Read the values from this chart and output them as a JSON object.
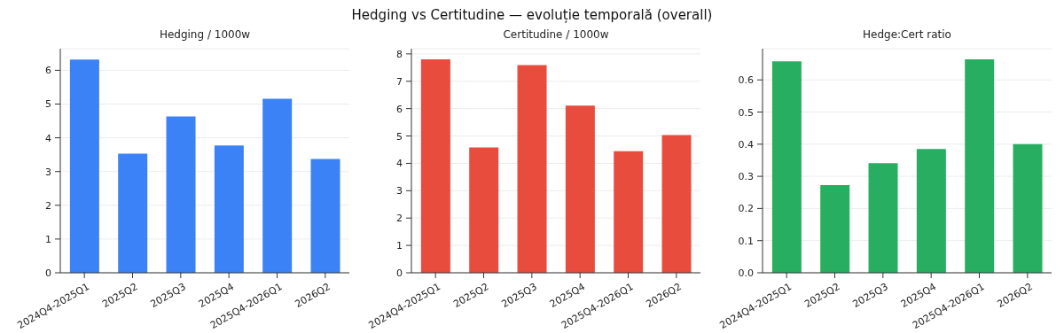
{
  "chart_data": [
    {
      "type": "bar",
      "title": "Hedging / 1000w",
      "annotations": [
        "Hedging vs Certitudine — evoluție temporală (overall)"
      ],
      "categories": [
        "2024Q4-2025Q1",
        "2025Q2",
        "2025Q3",
        "2025Q4",
        "2025Q4-2026Q1",
        "2026Q2"
      ],
      "values": [
        6.32,
        3.53,
        4.63,
        3.77,
        5.16,
        3.37
      ],
      "color": "#3b82f6",
      "ylim": [
        0,
        6.64
      ],
      "yticks": [
        0,
        1,
        2,
        3,
        4,
        5,
        6
      ],
      "grid": "y"
    },
    {
      "type": "bar",
      "title": "Certitudine / 1000w",
      "categories": [
        "2024Q4-2025Q1",
        "2025Q2",
        "2025Q3",
        "2025Q4",
        "2025Q4-2026Q1",
        "2026Q2"
      ],
      "values": [
        7.8,
        4.58,
        7.59,
        6.11,
        4.44,
        5.03
      ],
      "color": "#e74c3c",
      "ylim": [
        0,
        8.19
      ],
      "yticks": [
        0,
        1,
        2,
        3,
        4,
        5,
        6,
        7,
        8
      ],
      "grid": "y"
    },
    {
      "type": "bar",
      "title": "Hedge:Cert ratio",
      "categories": [
        "2024Q4-2025Q1",
        "2025Q2",
        "2025Q3",
        "2025Q4",
        "2025Q4-2026Q1",
        "2026Q2"
      ],
      "values": [
        0.658,
        0.273,
        0.341,
        0.385,
        0.664,
        0.4
      ],
      "color": "#27ae60",
      "ylim": [
        0,
        0.697
      ],
      "yticks": [
        {
          "value": 0,
          "label": "0.0"
        },
        0.1,
        0.2,
        0.3,
        0.4,
        0.5,
        0.6
      ],
      "grid": "y"
    }
  ]
}
